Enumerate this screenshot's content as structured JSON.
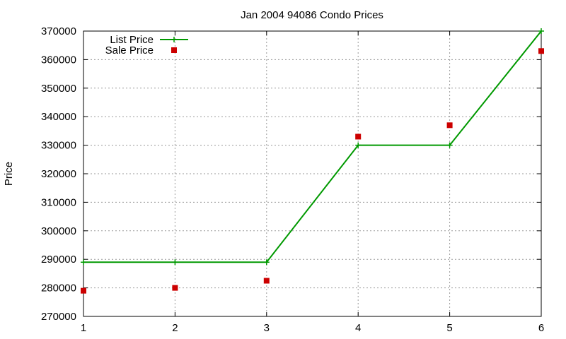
{
  "chart_data": {
    "type": "line",
    "title": "Jan 2004 94086 Condo Prices",
    "xlabel": "",
    "ylabel": "Price",
    "xlim": [
      1,
      6
    ],
    "ylim": [
      270000,
      370000
    ],
    "x_ticks": [
      1,
      2,
      3,
      4,
      5,
      6
    ],
    "y_ticks": [
      270000,
      280000,
      290000,
      300000,
      310000,
      320000,
      330000,
      340000,
      350000,
      360000,
      370000
    ],
    "grid": true,
    "legend_position": "top-left",
    "series": [
      {
        "name": "List Price",
        "style": "line-points",
        "color": "#009900",
        "x": [
          1,
          2,
          3,
          4,
          5,
          6
        ],
        "values": [
          289000,
          289000,
          289000,
          330000,
          330000,
          370000
        ]
      },
      {
        "name": "Sale Price",
        "style": "points",
        "color": "#cc0000",
        "x": [
          1,
          2,
          3,
          4,
          5,
          6
        ],
        "values": [
          279000,
          280000,
          282500,
          333000,
          337000,
          363000
        ]
      }
    ]
  }
}
